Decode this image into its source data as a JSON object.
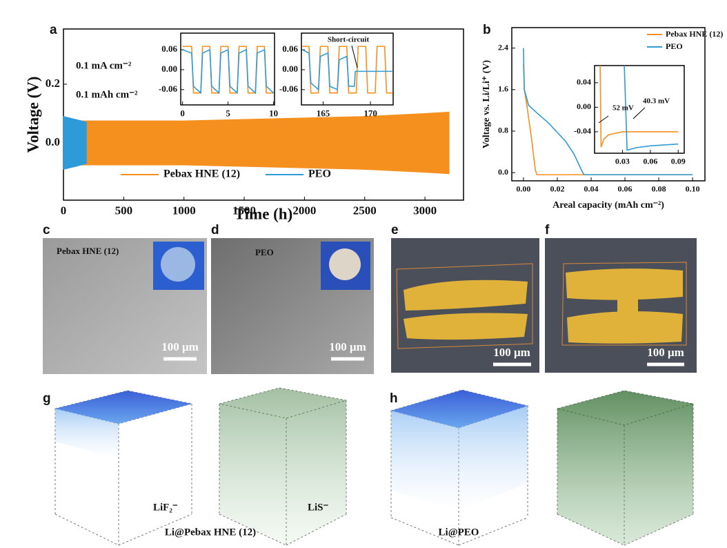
{
  "panel_labels": [
    "a",
    "b",
    "c",
    "d",
    "e",
    "f",
    "g",
    "h"
  ],
  "chart_data": [
    {
      "type": "band",
      "xlabel": "Time (h)",
      "ylabel": "Voltage (V)",
      "xlim": [
        0,
        3320
      ],
      "xticks": [
        0,
        500,
        1000,
        1500,
        2000,
        2500,
        3000
      ],
      "ylim": [
        -0.195,
        0.388
      ],
      "yticks": [
        {
          "value": 0,
          "label": "0.0"
        },
        0.2
      ],
      "annotations": [
        "0.1 mA cm⁻²",
        "0.1 mAh cm⁻²"
      ],
      "legend": "lower center",
      "series": [
        {
          "name": "Pebax HNE (12)",
          "color": "#f5901e",
          "x": [
            0,
            500,
            1000,
            1500,
            2000,
            2500,
            3000,
            3200
          ],
          "values": [
            0.075,
            0.075,
            0.075,
            0.08,
            0.085,
            0.09,
            0.1,
            0.105
          ],
          "lower": [
            -0.075,
            -0.075,
            -0.075,
            -0.08,
            -0.085,
            -0.09,
            -0.1,
            -0.105
          ]
        },
        {
          "name": "PEO",
          "color": "#2e9ad8",
          "x": [
            0,
            50,
            100,
            150,
            190
          ],
          "values": [
            0.09,
            0.085,
            0.08,
            0.075,
            0.07
          ],
          "lower": [
            -0.09,
            -0.085,
            -0.08,
            -0.075,
            -0.07
          ]
        }
      ]
    },
    {
      "type": "line",
      "xlim": [
        -0.2,
        10.1
      ],
      "xticks": [
        0,
        5,
        10
      ],
      "ylim": [
        -0.106,
        0.11
      ],
      "yticks": [
        -0.06,
        {
          "value": 0,
          "label": "0.00"
        },
        0.06
      ],
      "series": [
        {
          "color": "#f5901e",
          "x": [
            0,
            1,
            1.2,
            2,
            2.2,
            3,
            3.2,
            4,
            4.2,
            5,
            5.2,
            6,
            6.2,
            7,
            7.2,
            8,
            8.2,
            9,
            9.2,
            10
          ],
          "values": [
            0.07,
            0.07,
            -0.07,
            -0.07,
            0.07,
            0.07,
            -0.07,
            -0.07,
            0.07,
            0.07,
            -0.07,
            -0.07,
            0.07,
            0.07,
            -0.07,
            -0.07,
            0.07,
            0.07,
            -0.07,
            -0.07
          ]
        },
        {
          "color": "#2e9ad8",
          "x": [
            0,
            1,
            1.2,
            2,
            2.2,
            3,
            3.2,
            4,
            4.2,
            5,
            5.2,
            6,
            6.2,
            7,
            7.2,
            8,
            8.2,
            9,
            9.2,
            10
          ],
          "values": [
            0.06,
            0.05,
            -0.05,
            -0.07,
            0.05,
            0.06,
            -0.05,
            -0.07,
            0.05,
            0.06,
            -0.05,
            -0.07,
            0.05,
            0.06,
            -0.05,
            -0.07,
            0.05,
            0.06,
            -0.05,
            -0.07
          ]
        }
      ]
    },
    {
      "type": "line",
      "xlim": [
        162.7,
        172.4
      ],
      "xticks": [
        165,
        170
      ],
      "ylim": [
        -0.106,
        0.11
      ],
      "yticks": [
        -0.06,
        {
          "value": 0,
          "label": "0.00"
        },
        0.06
      ],
      "annotations": [
        "Short-circuit"
      ],
      "series": [
        {
          "color": "#f5901e",
          "x": [
            162.8,
            163.5,
            163.7,
            164.5,
            164.7,
            165.5,
            165.7,
            166.5,
            166.7,
            167.5,
            167.7,
            168.5,
            168.7,
            169.5,
            169.7,
            170.5,
            170.7,
            171.5,
            171.7,
            172.3
          ],
          "values": [
            0.07,
            0.07,
            -0.07,
            -0.07,
            0.07,
            0.07,
            -0.07,
            -0.07,
            0.07,
            0.07,
            -0.07,
            -0.07,
            0.07,
            0.07,
            -0.07,
            -0.07,
            0.07,
            0.07,
            -0.07,
            -0.07
          ]
        },
        {
          "color": "#2e9ad8",
          "x": [
            162.8,
            163.5,
            163.7,
            164.5,
            164.7,
            165.5,
            165.7,
            166.5,
            166.7,
            167.5,
            167.7,
            168.3,
            168.4,
            172.3
          ],
          "values": [
            0.06,
            0.05,
            -0.04,
            -0.06,
            0.04,
            0.05,
            -0.05,
            -0.06,
            0.03,
            0.04,
            -0.05,
            -0.05,
            -0.005,
            -0.005
          ]
        }
      ]
    },
    {
      "type": "line",
      "xlabel": "Areal capacity (mAh cm⁻²)",
      "ylabel": "Voltage vs. Li/Li⁺ (V)",
      "xlim": [
        -0.0069,
        0.1073
      ],
      "xticks": [
        {
          "value": 0,
          "label": "0.00"
        },
        0.02,
        0.04,
        0.06,
        0.08,
        {
          "value": 0.1,
          "label": "0.10"
        }
      ],
      "ylim": [
        -0.158,
        2.795
      ],
      "yticks": [
        {
          "value": 0,
          "label": "0.0"
        },
        0.8,
        1.6,
        2.4
      ],
      "legend": "upper right",
      "series": [
        {
          "name": "Pebax HNE (12)",
          "color": "#f5901e",
          "x": [
            0,
            0.0005,
            0.002,
            0.005,
            0.007,
            0.008,
            0.1
          ],
          "values": [
            2.1,
            1.6,
            1.3,
            0.6,
            0.05,
            -0.04,
            -0.04
          ]
        },
        {
          "name": "PEO",
          "color": "#2e9ad8",
          "x": [
            0,
            0.0005,
            0.003,
            0.008,
            0.015,
            0.025,
            0.03,
            0.035,
            0.036,
            0.1
          ],
          "values": [
            2.4,
            1.6,
            1.3,
            1.15,
            0.95,
            0.6,
            0.35,
            0,
            -0.04,
            -0.04
          ]
        }
      ]
    },
    {
      "type": "line",
      "xlim": [
        0,
        0.0965
      ],
      "xticks": [
        0.03,
        0.06,
        0.09
      ],
      "ylim": [
        -0.075,
        0.068
      ],
      "yticks": [
        -0.04,
        {
          "value": 0,
          "label": "0.00"
        },
        0.04
      ],
      "annotations": [
        "52 mV",
        "40.3 mV"
      ],
      "series": [
        {
          "color": "#f5901e",
          "x": [
            0.006,
            0.007,
            0.01,
            0.015,
            0.03,
            0.09
          ],
          "values": [
            0.068,
            -0.065,
            -0.052,
            -0.045,
            -0.04,
            -0.04
          ]
        },
        {
          "color": "#2e9ad8",
          "x": [
            0.032,
            0.035,
            0.045,
            0.06,
            0.09
          ],
          "values": [
            0.068,
            -0.07,
            -0.066,
            -0.063,
            -0.06
          ]
        }
      ]
    }
  ],
  "figure": {
    "c": {
      "label": "Pebax HNE (12)",
      "scale_bar": "100 μm"
    },
    "d": {
      "label": "PEO",
      "scale_bar": "100 μm"
    },
    "e": {
      "scale_bar": "100 μm"
    },
    "f": {
      "scale_bar": "100 μm"
    },
    "g": {
      "ions": [
        "LiF₂⁻",
        "LiS⁻"
      ],
      "caption": "Li@Pebax HNE (12)"
    },
    "h": {
      "caption": "Li@PEO"
    }
  }
}
